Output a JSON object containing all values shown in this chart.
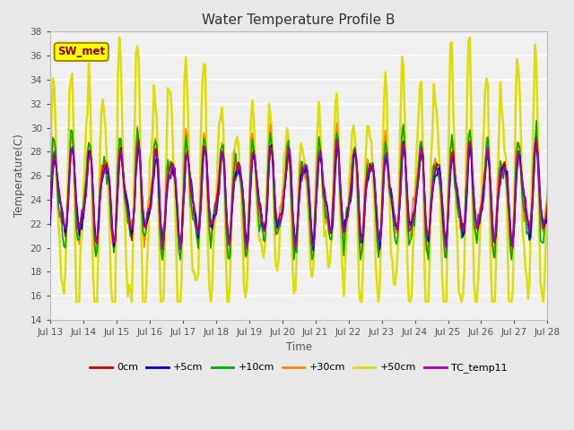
{
  "title": "Water Temperature Profile B",
  "xlabel": "Time",
  "ylabel": "Temperature(C)",
  "ylim": [
    14,
    38
  ],
  "series": {
    "0cm": {
      "color": "#cc0000",
      "lw": 1.2,
      "zorder": 4
    },
    "+5cm": {
      "color": "#0000cc",
      "lw": 1.2,
      "zorder": 5
    },
    "+10cm": {
      "color": "#00aa00",
      "lw": 1.2,
      "zorder": 3
    },
    "+30cm": {
      "color": "#ff8800",
      "lw": 1.2,
      "zorder": 2
    },
    "+50cm": {
      "color": "#dddd00",
      "lw": 1.8,
      "zorder": 1
    },
    "TC_temp11": {
      "color": "#aa00aa",
      "lw": 1.2,
      "zorder": 6
    }
  },
  "legend_label": "SW_met",
  "legend_box_facecolor": "#ffff00",
  "legend_text_color": "#880000",
  "legend_edge_color": "#aa8800",
  "plot_bg_color": "#f0f0f0",
  "fig_bg_color": "#e8e8e8",
  "grid_color": "#ffffff",
  "xtick_dates": [
    "Jul 13",
    "Jul 14",
    "Jul 15",
    "Jul 16",
    "Jul 17",
    "Jul 18",
    "Jul 19",
    "Jul 20",
    "Jul 21",
    "Jul 22",
    "Jul 23",
    "Jul 24",
    "Jul 25",
    "Jul 26",
    "Jul 27",
    "Jul 28"
  ],
  "title_fontsize": 11,
  "tick_fontsize": 7.5,
  "label_fontsize": 8.5
}
